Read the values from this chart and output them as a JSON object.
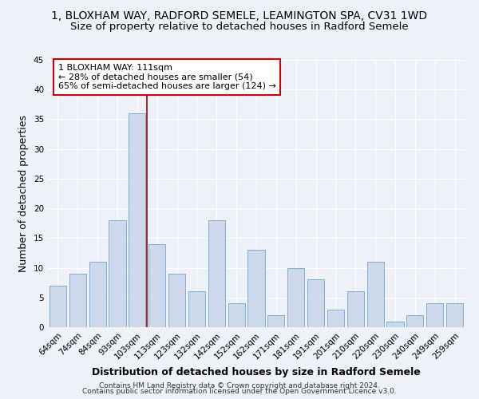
{
  "title1": "1, BLOXHAM WAY, RADFORD SEMELE, LEAMINGTON SPA, CV31 1WD",
  "title2": "Size of property relative to detached houses in Radford Semele",
  "xlabel": "Distribution of detached houses by size in Radford Semele",
  "ylabel": "Number of detached properties",
  "bar_labels": [
    "64sqm",
    "74sqm",
    "84sqm",
    "93sqm",
    "103sqm",
    "113sqm",
    "123sqm",
    "132sqm",
    "142sqm",
    "152sqm",
    "162sqm",
    "171sqm",
    "181sqm",
    "191sqm",
    "201sqm",
    "210sqm",
    "220sqm",
    "230sqm",
    "240sqm",
    "249sqm",
    "259sqm"
  ],
  "bar_values": [
    7,
    9,
    11,
    18,
    36,
    14,
    9,
    6,
    18,
    4,
    13,
    2,
    10,
    8,
    3,
    6,
    11,
    1,
    2,
    4,
    4
  ],
  "bar_color": "#cdd9ea",
  "bar_edge_color": "#7baed4",
  "background_color": "#eef2f8",
  "grid_color": "#ffffff",
  "ylim": [
    0,
    45
  ],
  "yticks": [
    0,
    5,
    10,
    15,
    20,
    25,
    30,
    35,
    40,
    45
  ],
  "property_line_color": "#aa0000",
  "annotation_text": "1 BLOXHAM WAY: 111sqm\n← 28% of detached houses are smaller (54)\n65% of semi-detached houses are larger (124) →",
  "annotation_box_color": "#ffffff",
  "annotation_box_edge": "#cc0000",
  "footer1": "Contains HM Land Registry data © Crown copyright and database right 2024.",
  "footer2": "Contains public sector information licensed under the Open Government Licence v3.0.",
  "title_fontsize": 10,
  "subtitle_fontsize": 9.5,
  "axis_label_fontsize": 9,
  "tick_fontsize": 7.5,
  "annotation_fontsize": 8,
  "footer_fontsize": 6.5
}
